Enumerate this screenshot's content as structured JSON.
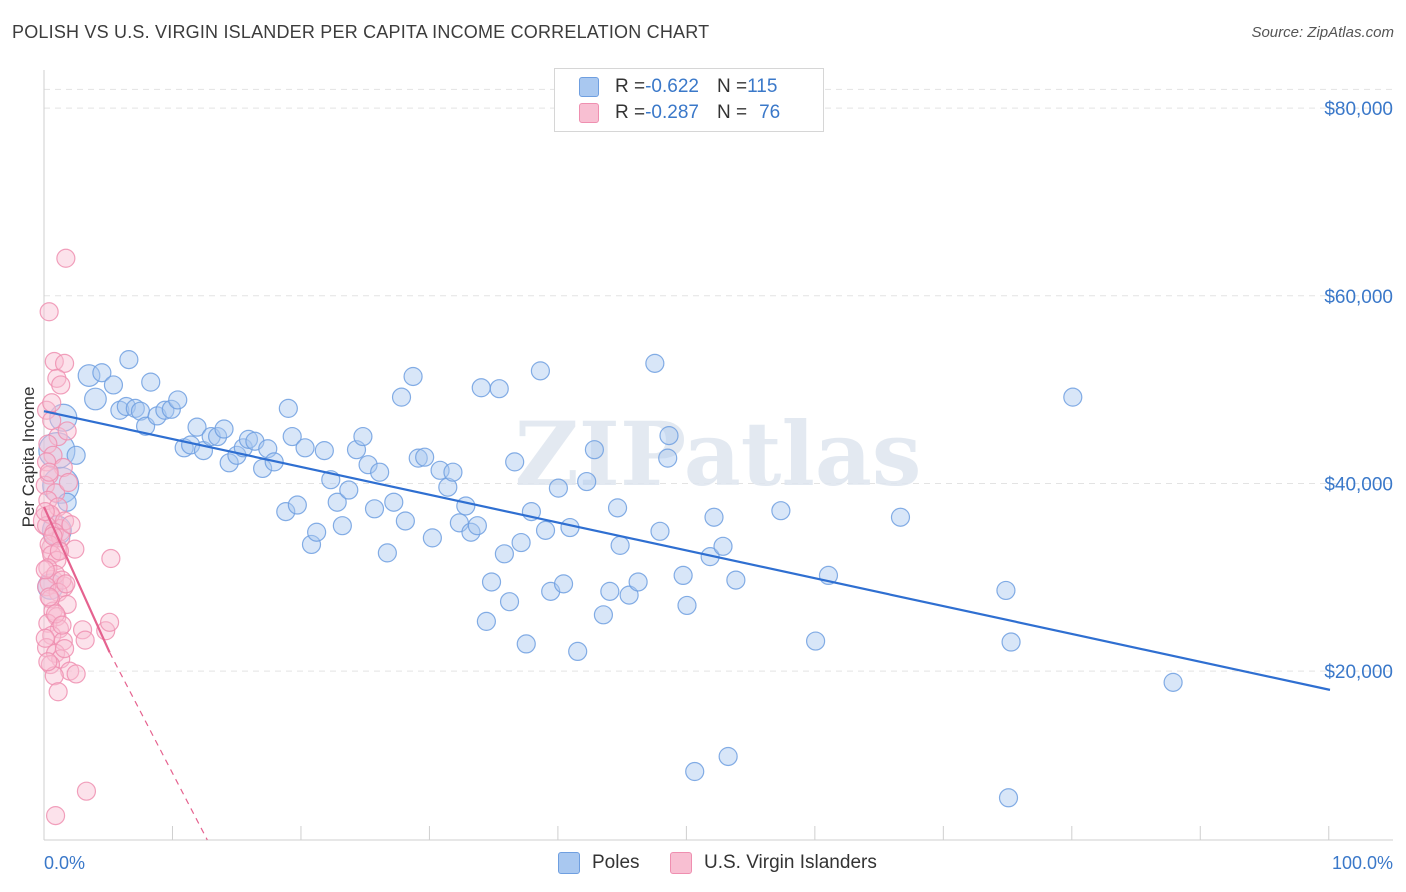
{
  "title": "POLISH VS U.S. VIRGIN ISLANDER PER CAPITA INCOME CORRELATION CHART",
  "source": "Source: ZipAtlas.com",
  "watermark": "ZIPatlas",
  "stats": [
    {
      "r_label": "R = ",
      "r_value": "-0.622",
      "n_label": "N = ",
      "n_value": "115",
      "color": "#a9c8f0",
      "border": "#6f9fe0"
    },
    {
      "r_label": "R = ",
      "r_value": "-0.287",
      "n_label": "N = ",
      "n_value": "76",
      "color": "#f8bfd2",
      "border": "#ef8fb0"
    }
  ],
  "legend": [
    {
      "label": "Poles",
      "color": "#a9c8f0",
      "border": "#6f9fe0"
    },
    {
      "label": "U.S. Virgin Islanders",
      "color": "#f8bfd2",
      "border": "#ef8fb0"
    }
  ],
  "chart_data": {
    "type": "scatter",
    "title": "POLISH VS U.S. VIRGIN ISLANDER PER CAPITA INCOME CORRELATION CHART",
    "xlabel": "",
    "ylabel": "Per Capita Income",
    "x_tick_labels": [
      "0.0%",
      "100.0%"
    ],
    "y_tick_labels": [
      "$20,000",
      "$40,000",
      "$60,000",
      "$80,000"
    ],
    "y_ticks": [
      20000,
      40000,
      60000,
      80000
    ],
    "xlim": [
      0,
      100
    ],
    "ylim": [
      2000,
      83000
    ],
    "grid": true,
    "series": [
      {
        "name": "Poles",
        "color": "#6f9fe0",
        "fill": "#a9c8f0",
        "trend": {
          "x0": 0,
          "y0": 47700,
          "x1": 100,
          "y1": 18000
        },
        "points": [
          {
            "x": 1.0,
            "y": 43500,
            "s": 2
          },
          {
            "x": 1.3,
            "y": 39800,
            "s": 2
          },
          {
            "x": 1.0,
            "y": 35000,
            "s": 1.6
          },
          {
            "x": 0.5,
            "y": 29000,
            "s": 1.4
          },
          {
            "x": 1.5,
            "y": 47000,
            "s": 1.5
          },
          {
            "x": 3.5,
            "y": 51500,
            "s": 1.2
          },
          {
            "x": 4.0,
            "y": 49000,
            "s": 1.2
          },
          {
            "x": 4.5,
            "y": 51800,
            "s": 1
          },
          {
            "x": 5.4,
            "y": 50500,
            "s": 1
          },
          {
            "x": 6.6,
            "y": 53200,
            "s": 1
          },
          {
            "x": 5.9,
            "y": 47800,
            "s": 1
          },
          {
            "x": 6.4,
            "y": 48200,
            "s": 1
          },
          {
            "x": 7.1,
            "y": 48000,
            "s": 1
          },
          {
            "x": 7.5,
            "y": 47700,
            "s": 1
          },
          {
            "x": 7.9,
            "y": 46100,
            "s": 1
          },
          {
            "x": 8.3,
            "y": 50800,
            "s": 1
          },
          {
            "x": 8.8,
            "y": 47200,
            "s": 1
          },
          {
            "x": 9.4,
            "y": 47800,
            "s": 1
          },
          {
            "x": 9.9,
            "y": 47900,
            "s": 1
          },
          {
            "x": 10.4,
            "y": 48900,
            "s": 1
          },
          {
            "x": 10.9,
            "y": 43800,
            "s": 1
          },
          {
            "x": 11.4,
            "y": 44100,
            "s": 1
          },
          {
            "x": 11.9,
            "y": 46000,
            "s": 1
          },
          {
            "x": 12.4,
            "y": 43500,
            "s": 1
          },
          {
            "x": 13.0,
            "y": 45000,
            "s": 1
          },
          {
            "x": 13.5,
            "y": 45000,
            "s": 1
          },
          {
            "x": 14.0,
            "y": 45800,
            "s": 1
          },
          {
            "x": 14.4,
            "y": 42200,
            "s": 1
          },
          {
            "x": 15.0,
            "y": 43000,
            "s": 1
          },
          {
            "x": 15.5,
            "y": 43800,
            "s": 1
          },
          {
            "x": 15.9,
            "y": 44700,
            "s": 1
          },
          {
            "x": 16.4,
            "y": 44500,
            "s": 1
          },
          {
            "x": 17.0,
            "y": 41600,
            "s": 1
          },
          {
            "x": 17.4,
            "y": 43700,
            "s": 1
          },
          {
            "x": 17.9,
            "y": 42300,
            "s": 1
          },
          {
            "x": 18.8,
            "y": 37000,
            "s": 1
          },
          {
            "x": 19.0,
            "y": 48000,
            "s": 1
          },
          {
            "x": 19.3,
            "y": 45000,
            "s": 1
          },
          {
            "x": 19.7,
            "y": 37700,
            "s": 1
          },
          {
            "x": 20.3,
            "y": 43800,
            "s": 1
          },
          {
            "x": 20.8,
            "y": 33500,
            "s": 1
          },
          {
            "x": 21.2,
            "y": 34800,
            "s": 1
          },
          {
            "x": 21.8,
            "y": 43500,
            "s": 1
          },
          {
            "x": 22.3,
            "y": 40400,
            "s": 1
          },
          {
            "x": 22.8,
            "y": 38000,
            "s": 1
          },
          {
            "x": 23.2,
            "y": 35500,
            "s": 1
          },
          {
            "x": 23.7,
            "y": 39300,
            "s": 1
          },
          {
            "x": 24.3,
            "y": 43600,
            "s": 1
          },
          {
            "x": 24.8,
            "y": 45000,
            "s": 1
          },
          {
            "x": 25.2,
            "y": 42000,
            "s": 1
          },
          {
            "x": 25.7,
            "y": 37300,
            "s": 1
          },
          {
            "x": 26.1,
            "y": 41200,
            "s": 1
          },
          {
            "x": 26.7,
            "y": 32600,
            "s": 1
          },
          {
            "x": 27.2,
            "y": 38000,
            "s": 1
          },
          {
            "x": 27.8,
            "y": 49200,
            "s": 1
          },
          {
            "x": 28.1,
            "y": 36000,
            "s": 1
          },
          {
            "x": 28.7,
            "y": 51400,
            "s": 1
          },
          {
            "x": 29.1,
            "y": 42700,
            "s": 1
          },
          {
            "x": 29.6,
            "y": 42800,
            "s": 1
          },
          {
            "x": 30.2,
            "y": 34200,
            "s": 1
          },
          {
            "x": 30.8,
            "y": 41400,
            "s": 1
          },
          {
            "x": 31.4,
            "y": 39600,
            "s": 1
          },
          {
            "x": 31.8,
            "y": 41200,
            "s": 1
          },
          {
            "x": 32.3,
            "y": 35800,
            "s": 1
          },
          {
            "x": 32.8,
            "y": 37600,
            "s": 1
          },
          {
            "x": 33.2,
            "y": 34800,
            "s": 1
          },
          {
            "x": 33.7,
            "y": 35500,
            "s": 1
          },
          {
            "x": 34.0,
            "y": 50200,
            "s": 1
          },
          {
            "x": 34.4,
            "y": 25300,
            "s": 1
          },
          {
            "x": 34.8,
            "y": 29500,
            "s": 1
          },
          {
            "x": 35.4,
            "y": 50100,
            "s": 1
          },
          {
            "x": 35.8,
            "y": 32500,
            "s": 1
          },
          {
            "x": 36.2,
            "y": 27400,
            "s": 1
          },
          {
            "x": 36.6,
            "y": 42300,
            "s": 1
          },
          {
            "x": 37.1,
            "y": 33700,
            "s": 1
          },
          {
            "x": 37.5,
            "y": 22900,
            "s": 1
          },
          {
            "x": 37.9,
            "y": 37000,
            "s": 1
          },
          {
            "x": 38.6,
            "y": 52000,
            "s": 1
          },
          {
            "x": 39.0,
            "y": 35000,
            "s": 1
          },
          {
            "x": 39.4,
            "y": 28500,
            "s": 1
          },
          {
            "x": 40.0,
            "y": 39500,
            "s": 1
          },
          {
            "x": 40.4,
            "y": 29300,
            "s": 1
          },
          {
            "x": 40.9,
            "y": 35300,
            "s": 1
          },
          {
            "x": 41.5,
            "y": 22100,
            "s": 1
          },
          {
            "x": 42.2,
            "y": 40200,
            "s": 1
          },
          {
            "x": 42.8,
            "y": 43600,
            "s": 1
          },
          {
            "x": 43.5,
            "y": 26000,
            "s": 1
          },
          {
            "x": 44.0,
            "y": 28500,
            "s": 1
          },
          {
            "x": 44.6,
            "y": 37400,
            "s": 1
          },
          {
            "x": 44.8,
            "y": 33400,
            "s": 1
          },
          {
            "x": 45.5,
            "y": 28100,
            "s": 1
          },
          {
            "x": 46.2,
            "y": 29500,
            "s": 1
          },
          {
            "x": 47.5,
            "y": 52800,
            "s": 1
          },
          {
            "x": 47.9,
            "y": 34900,
            "s": 1
          },
          {
            "x": 48.5,
            "y": 42700,
            "s": 1
          },
          {
            "x": 48.6,
            "y": 45100,
            "s": 1
          },
          {
            "x": 49.7,
            "y": 30200,
            "s": 1
          },
          {
            "x": 50.0,
            "y": 27000,
            "s": 1
          },
          {
            "x": 50.6,
            "y": 9300,
            "s": 1
          },
          {
            "x": 51.8,
            "y": 32200,
            "s": 1
          },
          {
            "x": 52.1,
            "y": 36400,
            "s": 1
          },
          {
            "x": 52.8,
            "y": 33300,
            "s": 1
          },
          {
            "x": 53.2,
            "y": 10900,
            "s": 1
          },
          {
            "x": 53.8,
            "y": 29700,
            "s": 1
          },
          {
            "x": 57.3,
            "y": 37100,
            "s": 1
          },
          {
            "x": 60.0,
            "y": 23200,
            "s": 1
          },
          {
            "x": 61.0,
            "y": 30200,
            "s": 1
          },
          {
            "x": 66.6,
            "y": 36400,
            "s": 1
          },
          {
            "x": 74.8,
            "y": 28600,
            "s": 1
          },
          {
            "x": 75.2,
            "y": 23100,
            "s": 1
          },
          {
            "x": 75.0,
            "y": 6500,
            "s": 1
          },
          {
            "x": 80.0,
            "y": 49200,
            "s": 1
          },
          {
            "x": 87.8,
            "y": 18800,
            "s": 1
          },
          {
            "x": 1.8,
            "y": 38000,
            "s": 1
          },
          {
            "x": 2.5,
            "y": 43000,
            "s": 1
          }
        ]
      },
      {
        "name": "U.S. Virgin Islanders",
        "color": "#ef8fb0",
        "fill": "#f8bfd2",
        "trend": {
          "x0": 0,
          "y0": 37500,
          "x1": 5.1,
          "y1": 22000
        },
        "trend_dashed": {
          "x0": 5.1,
          "y0": 22000,
          "x1": 12.7,
          "y1": 2000
        },
        "points": [
          {
            "x": 0.3,
            "y": 36000,
            "s": 1.6
          },
          {
            "x": 0.8,
            "y": 33000,
            "s": 1.4
          },
          {
            "x": 0.6,
            "y": 29500,
            "s": 1.3
          },
          {
            "x": 1.2,
            "y": 35000,
            "s": 1.2
          },
          {
            "x": 1.5,
            "y": 29000,
            "s": 1.1
          },
          {
            "x": 1.7,
            "y": 64000,
            "s": 1
          },
          {
            "x": 0.4,
            "y": 58300,
            "s": 1
          },
          {
            "x": 0.8,
            "y": 53000,
            "s": 1
          },
          {
            "x": 1.6,
            "y": 52800,
            "s": 1
          },
          {
            "x": 1.0,
            "y": 51200,
            "s": 1
          },
          {
            "x": 1.3,
            "y": 50500,
            "s": 1
          },
          {
            "x": 0.2,
            "y": 47800,
            "s": 1
          },
          {
            "x": 0.6,
            "y": 46700,
            "s": 1
          },
          {
            "x": 1.1,
            "y": 45000,
            "s": 1
          },
          {
            "x": 0.3,
            "y": 44200,
            "s": 1
          },
          {
            "x": 0.7,
            "y": 43000,
            "s": 1
          },
          {
            "x": 0.2,
            "y": 42300,
            "s": 1
          },
          {
            "x": 1.5,
            "y": 41700,
            "s": 1
          },
          {
            "x": 0.4,
            "y": 40900,
            "s": 1
          },
          {
            "x": 0.1,
            "y": 39800,
            "s": 1
          },
          {
            "x": 0.9,
            "y": 39000,
            "s": 1
          },
          {
            "x": 0.3,
            "y": 38200,
            "s": 1
          },
          {
            "x": 1.1,
            "y": 37500,
            "s": 1
          },
          {
            "x": 0.5,
            "y": 36700,
            "s": 1
          },
          {
            "x": 1.6,
            "y": 36000,
            "s": 1
          },
          {
            "x": 0.2,
            "y": 35500,
            "s": 1
          },
          {
            "x": 0.8,
            "y": 34800,
            "s": 1
          },
          {
            "x": 1.3,
            "y": 34200,
            "s": 1
          },
          {
            "x": 0.4,
            "y": 33500,
            "s": 1
          },
          {
            "x": 2.4,
            "y": 33000,
            "s": 1
          },
          {
            "x": 0.6,
            "y": 32400,
            "s": 1
          },
          {
            "x": 1.0,
            "y": 31800,
            "s": 1
          },
          {
            "x": 5.2,
            "y": 32000,
            "s": 1
          },
          {
            "x": 0.3,
            "y": 31000,
            "s": 1
          },
          {
            "x": 0.9,
            "y": 30300,
            "s": 1
          },
          {
            "x": 1.4,
            "y": 29700,
            "s": 1
          },
          {
            "x": 0.2,
            "y": 29000,
            "s": 1
          },
          {
            "x": 1.1,
            "y": 28400,
            "s": 1
          },
          {
            "x": 0.5,
            "y": 27700,
            "s": 1
          },
          {
            "x": 1.8,
            "y": 27100,
            "s": 1
          },
          {
            "x": 0.7,
            "y": 26400,
            "s": 1
          },
          {
            "x": 1.0,
            "y": 25800,
            "s": 1
          },
          {
            "x": 0.3,
            "y": 25100,
            "s": 1
          },
          {
            "x": 1.2,
            "y": 24500,
            "s": 1
          },
          {
            "x": 3.0,
            "y": 24400,
            "s": 1
          },
          {
            "x": 4.8,
            "y": 24300,
            "s": 1
          },
          {
            "x": 5.1,
            "y": 25200,
            "s": 1
          },
          {
            "x": 0.6,
            "y": 23800,
            "s": 1
          },
          {
            "x": 1.5,
            "y": 23200,
            "s": 1
          },
          {
            "x": 3.2,
            "y": 23300,
            "s": 1
          },
          {
            "x": 0.2,
            "y": 22500,
            "s": 1
          },
          {
            "x": 0.9,
            "y": 21900,
            "s": 1
          },
          {
            "x": 1.3,
            "y": 21300,
            "s": 1
          },
          {
            "x": 0.5,
            "y": 20700,
            "s": 1
          },
          {
            "x": 2.0,
            "y": 20000,
            "s": 1
          },
          {
            "x": 2.5,
            "y": 19700,
            "s": 1
          },
          {
            "x": 0.8,
            "y": 19500,
            "s": 1
          },
          {
            "x": 1.1,
            "y": 17800,
            "s": 1
          },
          {
            "x": 3.3,
            "y": 7200,
            "s": 1
          },
          {
            "x": 0.9,
            "y": 4600,
            "s": 1
          },
          {
            "x": 0.4,
            "y": 41200,
            "s": 1
          },
          {
            "x": 1.9,
            "y": 40100,
            "s": 1
          },
          {
            "x": 0.1,
            "y": 37000,
            "s": 1
          },
          {
            "x": 2.1,
            "y": 35600,
            "s": 1
          },
          {
            "x": 0.7,
            "y": 34400,
            "s": 1
          },
          {
            "x": 1.2,
            "y": 32800,
            "s": 1
          },
          {
            "x": 0.1,
            "y": 30800,
            "s": 1
          },
          {
            "x": 1.7,
            "y": 29300,
            "s": 1
          },
          {
            "x": 0.4,
            "y": 27900,
            "s": 1
          },
          {
            "x": 0.9,
            "y": 26100,
            "s": 1
          },
          {
            "x": 1.4,
            "y": 24900,
            "s": 1
          },
          {
            "x": 0.1,
            "y": 23500,
            "s": 1
          },
          {
            "x": 1.6,
            "y": 22400,
            "s": 1
          },
          {
            "x": 0.3,
            "y": 21000,
            "s": 1
          },
          {
            "x": 1.8,
            "y": 45600,
            "s": 1
          },
          {
            "x": 0.6,
            "y": 48600,
            "s": 1
          }
        ]
      }
    ]
  }
}
